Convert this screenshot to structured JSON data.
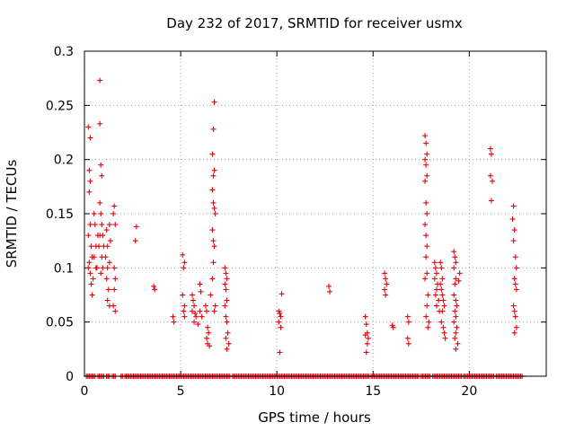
{
  "colors": {
    "series": "#e8000b",
    "grid": "#a0a0a0",
    "axis": "#000000"
  },
  "chart_data": {
    "type": "scatter",
    "title": "Day 232 of 2017, SRMTID for receiver usmx",
    "xlabel": "GPS time / hours",
    "ylabel": "SRMTID / TECUs",
    "xlim": [
      0,
      24
    ],
    "ylim": [
      0,
      0.3
    ],
    "xticks": [
      0,
      5,
      10,
      15,
      20
    ],
    "xtick_labels": [
      "0",
      "5",
      "10",
      "15",
      "20"
    ],
    "yticks": [
      0,
      0.05,
      0.1,
      0.15,
      0.2,
      0.25,
      0.3
    ],
    "ytick_labels": [
      "0",
      "0.05",
      "0.1",
      "0.15",
      "0.2",
      "0.25",
      "0.3"
    ],
    "grid": true,
    "marker": "+",
    "series": [
      {
        "name": "SRMTID",
        "points": [
          [
            0.2,
            0.23
          ],
          [
            0.3,
            0.22
          ],
          [
            0.25,
            0.19
          ],
          [
            0.3,
            0.18
          ],
          [
            0.25,
            0.17
          ],
          [
            0.3,
            0.14
          ],
          [
            0.2,
            0.13
          ],
          [
            0.35,
            0.12
          ],
          [
            0.4,
            0.11
          ],
          [
            0.2,
            0.1
          ],
          [
            0.3,
            0.095
          ],
          [
            0.45,
            0.09
          ],
          [
            0.35,
            0.085
          ],
          [
            0.4,
            0.075
          ],
          [
            0.25,
            0.105
          ],
          [
            0.5,
            0.15
          ],
          [
            0.55,
            0.14
          ],
          [
            0.6,
            0.12
          ],
          [
            0.5,
            0.11
          ],
          [
            0.6,
            0.1
          ],
          [
            0.7,
            0.13
          ],
          [
            0.65,
            0.1
          ],
          [
            0.8,
            0.273
          ],
          [
            0.8,
            0.233
          ],
          [
            0.85,
            0.195
          ],
          [
            0.9,
            0.185
          ],
          [
            0.8,
            0.16
          ],
          [
            0.85,
            0.15
          ],
          [
            0.9,
            0.14
          ],
          [
            0.8,
            0.13
          ],
          [
            0.75,
            0.12
          ],
          [
            0.9,
            0.11
          ],
          [
            0.95,
            0.1
          ],
          [
            0.85,
            0.095
          ],
          [
            0.95,
            0.13
          ],
          [
            1.0,
            0.12
          ],
          [
            1.15,
            0.135
          ],
          [
            1.2,
            0.12
          ],
          [
            1.1,
            0.11
          ],
          [
            1.2,
            0.1
          ],
          [
            1.15,
            0.09
          ],
          [
            1.25,
            0.08
          ],
          [
            1.2,
            0.07
          ],
          [
            1.3,
            0.065
          ],
          [
            1.3,
            0.14
          ],
          [
            1.35,
            0.125
          ],
          [
            1.3,
            0.105
          ],
          [
            1.55,
            0.157
          ],
          [
            1.5,
            0.15
          ],
          [
            1.6,
            0.14
          ],
          [
            1.55,
            0.1
          ],
          [
            1.6,
            0.09
          ],
          [
            1.5,
            0.065
          ],
          [
            1.6,
            0.06
          ],
          [
            1.55,
            0.08
          ],
          [
            2.7,
            0.138
          ],
          [
            2.65,
            0.125
          ],
          [
            3.6,
            0.083
          ],
          [
            3.65,
            0.08
          ],
          [
            4.6,
            0.055
          ],
          [
            4.65,
            0.05
          ],
          [
            5.1,
            0.112
          ],
          [
            5.2,
            0.105
          ],
          [
            5.15,
            0.1
          ],
          [
            5.1,
            0.075
          ],
          [
            5.2,
            0.065
          ],
          [
            5.15,
            0.06
          ],
          [
            5.2,
            0.055
          ],
          [
            5.6,
            0.075
          ],
          [
            5.65,
            0.07
          ],
          [
            5.7,
            0.065
          ],
          [
            5.6,
            0.06
          ],
          [
            5.75,
            0.058
          ],
          [
            5.8,
            0.055
          ],
          [
            5.7,
            0.05
          ],
          [
            5.9,
            0.048
          ],
          [
            6.0,
            0.085
          ],
          [
            6.05,
            0.078
          ],
          [
            6.0,
            0.06
          ],
          [
            6.1,
            0.055
          ],
          [
            6.3,
            0.065
          ],
          [
            6.35,
            0.06
          ],
          [
            6.4,
            0.045
          ],
          [
            6.45,
            0.04
          ],
          [
            6.35,
            0.035
          ],
          [
            6.4,
            0.03
          ],
          [
            6.5,
            0.028
          ],
          [
            6.55,
            0.075
          ],
          [
            6.75,
            0.253
          ],
          [
            6.7,
            0.228
          ],
          [
            6.65,
            0.205
          ],
          [
            6.75,
            0.19
          ],
          [
            6.7,
            0.185
          ],
          [
            6.65,
            0.172
          ],
          [
            6.7,
            0.16
          ],
          [
            6.75,
            0.155
          ],
          [
            6.8,
            0.15
          ],
          [
            6.65,
            0.135
          ],
          [
            6.7,
            0.125
          ],
          [
            6.75,
            0.12
          ],
          [
            6.7,
            0.105
          ],
          [
            6.65,
            0.09
          ],
          [
            6.8,
            0.065
          ],
          [
            6.75,
            0.06
          ],
          [
            7.3,
            0.1
          ],
          [
            7.35,
            0.095
          ],
          [
            7.4,
            0.09
          ],
          [
            7.3,
            0.085
          ],
          [
            7.35,
            0.08
          ],
          [
            7.4,
            0.07
          ],
          [
            7.3,
            0.065
          ],
          [
            7.35,
            0.055
          ],
          [
            7.4,
            0.05
          ],
          [
            7.45,
            0.04
          ],
          [
            7.35,
            0.035
          ],
          [
            7.5,
            0.03
          ],
          [
            7.4,
            0.025
          ],
          [
            10.1,
            0.06
          ],
          [
            10.15,
            0.058
          ],
          [
            10.2,
            0.055
          ],
          [
            10.1,
            0.05
          ],
          [
            10.25,
            0.076
          ],
          [
            10.2,
            0.045
          ],
          [
            10.15,
            0.022
          ],
          [
            12.7,
            0.083
          ],
          [
            12.75,
            0.078
          ],
          [
            14.6,
            0.055
          ],
          [
            14.65,
            0.048
          ],
          [
            14.7,
            0.04
          ],
          [
            14.6,
            0.038
          ],
          [
            14.75,
            0.035
          ],
          [
            14.7,
            0.03
          ],
          [
            14.65,
            0.022
          ],
          [
            15.6,
            0.095
          ],
          [
            15.65,
            0.09
          ],
          [
            15.7,
            0.085
          ],
          [
            15.6,
            0.08
          ],
          [
            15.65,
            0.075
          ],
          [
            16.0,
            0.047
          ],
          [
            16.05,
            0.045
          ],
          [
            16.8,
            0.055
          ],
          [
            16.85,
            0.05
          ],
          [
            16.8,
            0.035
          ],
          [
            16.85,
            0.03
          ],
          [
            17.7,
            0.222
          ],
          [
            17.75,
            0.215
          ],
          [
            17.8,
            0.205
          ],
          [
            17.7,
            0.2
          ],
          [
            17.75,
            0.195
          ],
          [
            17.8,
            0.185
          ],
          [
            17.7,
            0.18
          ],
          [
            17.75,
            0.16
          ],
          [
            17.8,
            0.15
          ],
          [
            17.7,
            0.14
          ],
          [
            17.75,
            0.13
          ],
          [
            17.8,
            0.12
          ],
          [
            17.75,
            0.11
          ],
          [
            17.8,
            0.095
          ],
          [
            17.7,
            0.09
          ],
          [
            17.85,
            0.075
          ],
          [
            17.8,
            0.065
          ],
          [
            17.75,
            0.055
          ],
          [
            17.9,
            0.05
          ],
          [
            17.85,
            0.045
          ],
          [
            18.2,
            0.105
          ],
          [
            18.25,
            0.1
          ],
          [
            18.3,
            0.095
          ],
          [
            18.2,
            0.09
          ],
          [
            18.35,
            0.085
          ],
          [
            18.3,
            0.08
          ],
          [
            18.25,
            0.075
          ],
          [
            18.4,
            0.07
          ],
          [
            18.3,
            0.065
          ],
          [
            18.45,
            0.06
          ],
          [
            18.5,
            0.105
          ],
          [
            18.55,
            0.1
          ],
          [
            18.6,
            0.09
          ],
          [
            18.5,
            0.085
          ],
          [
            18.55,
            0.08
          ],
          [
            18.6,
            0.075
          ],
          [
            18.65,
            0.07
          ],
          [
            18.7,
            0.065
          ],
          [
            18.6,
            0.06
          ],
          [
            18.55,
            0.05
          ],
          [
            18.65,
            0.045
          ],
          [
            18.7,
            0.04
          ],
          [
            18.75,
            0.035
          ],
          [
            19.2,
            0.115
          ],
          [
            19.25,
            0.11
          ],
          [
            19.3,
            0.105
          ],
          [
            19.2,
            0.1
          ],
          [
            19.3,
            0.09
          ],
          [
            19.25,
            0.085
          ],
          [
            19.2,
            0.075
          ],
          [
            19.3,
            0.07
          ],
          [
            19.35,
            0.065
          ],
          [
            19.25,
            0.06
          ],
          [
            19.3,
            0.055
          ],
          [
            19.2,
            0.05
          ],
          [
            19.35,
            0.045
          ],
          [
            19.3,
            0.04
          ],
          [
            19.25,
            0.035
          ],
          [
            19.4,
            0.03
          ],
          [
            19.3,
            0.025
          ],
          [
            19.5,
            0.095
          ],
          [
            19.45,
            0.088
          ],
          [
            21.1,
            0.21
          ],
          [
            21.15,
            0.205
          ],
          [
            21.1,
            0.185
          ],
          [
            21.2,
            0.18
          ],
          [
            21.15,
            0.162
          ],
          [
            22.3,
            0.157
          ],
          [
            22.25,
            0.145
          ],
          [
            22.35,
            0.135
          ],
          [
            22.3,
            0.125
          ],
          [
            22.4,
            0.11
          ],
          [
            22.45,
            0.1
          ],
          [
            22.35,
            0.09
          ],
          [
            22.4,
            0.085
          ],
          [
            22.45,
            0.08
          ],
          [
            22.3,
            0.065
          ],
          [
            22.35,
            0.06
          ],
          [
            22.4,
            0.055
          ],
          [
            22.45,
            0.045
          ],
          [
            22.35,
            0.04
          ]
        ],
        "zero_segments": [
          [
            0.1,
            0.6
          ],
          [
            0.7,
            1.0
          ],
          [
            1.15,
            1.3
          ],
          [
            1.45,
            1.6
          ],
          [
            1.9,
            2.0
          ],
          [
            2.1,
            7.6
          ],
          [
            7.7,
            14.8
          ],
          [
            14.9,
            17.4
          ],
          [
            17.5,
            18.0
          ],
          [
            18.1,
            19.6
          ],
          [
            19.7,
            21.3
          ],
          [
            21.4,
            22.8
          ]
        ]
      }
    ]
  }
}
